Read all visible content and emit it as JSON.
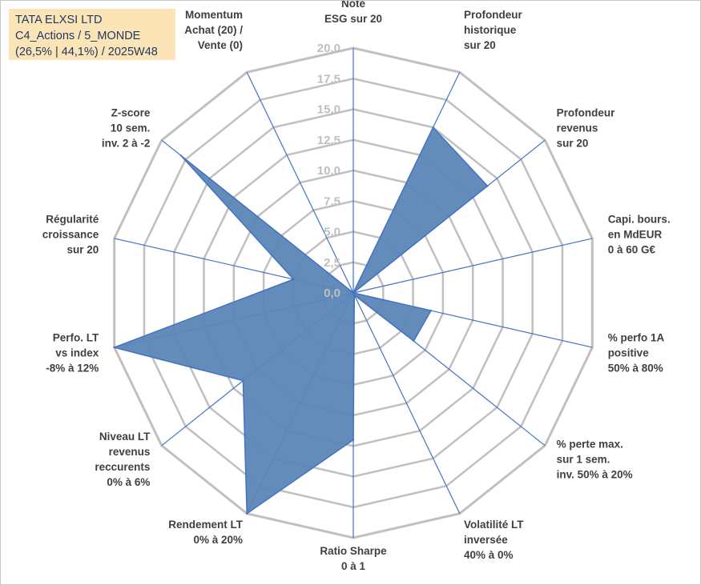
{
  "header": {
    "company": "TATA ELXSI LTD",
    "category": "C4_Actions / 5_MONDE",
    "stats": "(26,5% | 44,1%) / 2025W48"
  },
  "chart_data": {
    "type": "radar",
    "title": "TATA ELXSI LTD",
    "rmin": 0,
    "rmax": 20,
    "ticks": [
      "0,0",
      "2,5",
      "5,0",
      "7,5",
      "10,0",
      "12,5",
      "15,0",
      "17,5",
      "20,0"
    ],
    "axes": [
      [
        "Note",
        "ESG sur 20"
      ],
      [
        "Profondeur",
        "historique",
        "sur 20"
      ],
      [
        "Profondeur",
        "revenus",
        "sur 20"
      ],
      [
        "Capi. bours.",
        "en MdEUR",
        "0 à 60 G€"
      ],
      [
        "% perfo 1A",
        "positive",
        "50% à 80%"
      ],
      [
        "% perte max.",
        "sur 1 sem.",
        "inv. 50% à 20%"
      ],
      [
        "Volatilité LT",
        "inversée",
        "40% à 0%"
      ],
      [
        "Ratio Sharpe",
        "0 à 1"
      ],
      [
        "Rendement LT",
        "0% à 20%"
      ],
      [
        "Niveau LT",
        "revenus",
        "reccurents",
        "0% à 6%"
      ],
      [
        "Perfo. LT",
        "vs index",
        "-8% à 12%"
      ],
      [
        "Régularité",
        "croissance",
        "sur 20"
      ],
      [
        "Z-score",
        "10 sem.",
        "inv. 2 à -2"
      ],
      [
        "Momentum",
        "Achat (20) /",
        "Vente (0)"
      ]
    ],
    "series": [
      {
        "name": "TATA ELXSI LTD",
        "values": [
          0,
          15.0,
          14.0,
          0,
          6.5,
          6.3,
          0.2,
          12.0,
          20.0,
          11.5,
          20.0,
          5.0,
          18.0,
          0
        ],
        "fill": "#5b86b7",
        "stroke": "#4472c4"
      }
    ],
    "colors": {
      "grid": "#c0c0c0",
      "spoke": "#4472c4"
    }
  }
}
